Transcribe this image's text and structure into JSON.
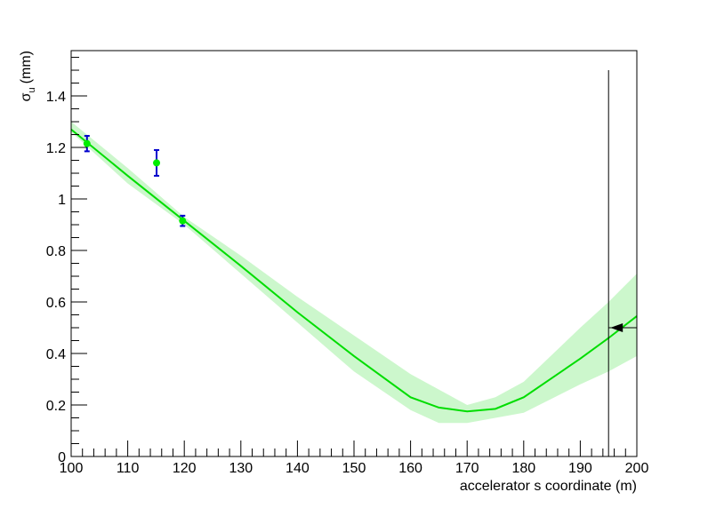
{
  "chart_data": {
    "type": "fit",
    "xlabel": "accelerator s coordinate (m)",
    "ylabel": "σ",
    "ylabel_sub": "u",
    "ylabel_unit": "(mm)",
    "xlim": [
      100,
      200
    ],
    "ylim": [
      0,
      1.576
    ],
    "xticks": [
      100,
      110,
      120,
      130,
      140,
      150,
      160,
      170,
      180,
      190,
      200
    ],
    "yticks": [
      0,
      0.2,
      0.4,
      0.6,
      0.8,
      1,
      1.2,
      1.4
    ],
    "points": {
      "x": [
        102.8,
        115.1,
        119.7
      ],
      "values": [
        1.215,
        1.14,
        0.915
      ],
      "errors": [
        0.03,
        0.05,
        0.02
      ],
      "color": "#00ee00",
      "error_color": "#0000cc"
    },
    "fit": {
      "x": [
        100,
        110,
        120,
        130,
        140,
        150,
        160,
        165,
        170,
        175,
        180,
        190,
        195,
        200
      ],
      "values": [
        1.27,
        1.09,
        0.915,
        0.74,
        0.56,
        0.39,
        0.23,
        0.19,
        0.175,
        0.185,
        0.23,
        0.38,
        0.46,
        0.545
      ],
      "upper": [
        1.3,
        1.12,
        0.93,
        0.78,
        0.62,
        0.47,
        0.32,
        0.26,
        0.2,
        0.23,
        0.29,
        0.5,
        0.6,
        0.71
      ],
      "lower": [
        1.26,
        1.06,
        0.9,
        0.71,
        0.52,
        0.33,
        0.18,
        0.13,
        0.13,
        0.15,
        0.17,
        0.28,
        0.33,
        0.39
      ],
      "color": "#00dd00",
      "band_color": "#ccf7cc"
    },
    "marker": {
      "x": 195,
      "y": 0.5,
      "ymax": 1.5,
      "color": "#000000"
    }
  }
}
